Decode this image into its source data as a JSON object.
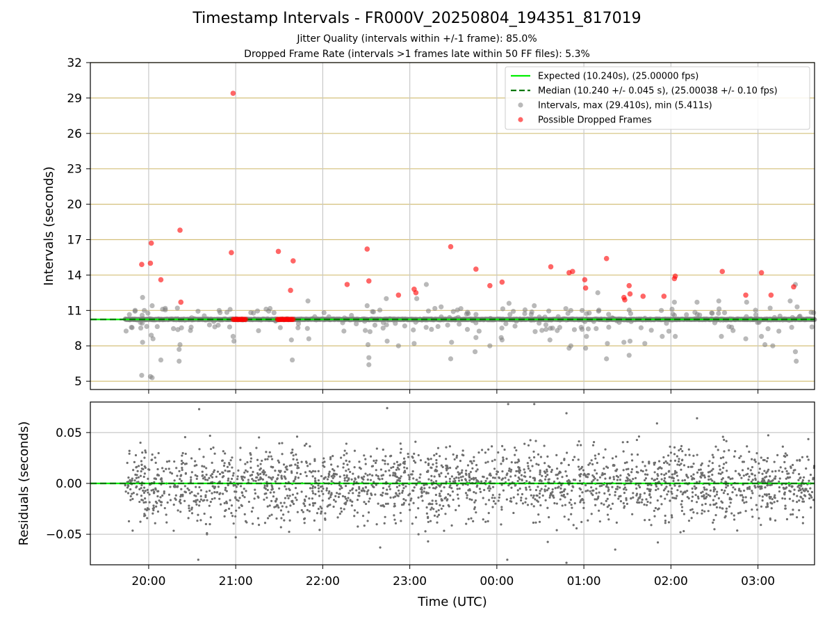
{
  "figure": {
    "title": "Timestamp Intervals - FR000V_20250804_194351_817019",
    "subtitle1": "Jitter Quality (intervals within +/-1 frame): 85.0%",
    "subtitle2": "Dropped Frame Rate (intervals >1 frames late within 50 FF files): 5.3%",
    "xlabel": "Time (UTC)"
  },
  "colors": {
    "expected": "#00ee00",
    "median": "#007700",
    "intervals": "#808080",
    "dropped": "#ff0000",
    "hgrid_top": "#d4c07a",
    "grid": "#c8c8c8"
  },
  "chart_data": [
    {
      "type": "scatter",
      "ylabel": "Intervals (seconds)",
      "yticks": [
        5,
        8,
        11,
        14,
        17,
        20,
        23,
        26,
        29,
        32
      ],
      "ylim": [
        4.3,
        32
      ],
      "xlim_hours": [
        19.33,
        27.65
      ],
      "legend_position": "top-right",
      "legend": [
        {
          "kind": "line",
          "label": "Expected (10.240s), (25.00000 fps)"
        },
        {
          "kind": "dashed",
          "label": "Median (10.240 +/- 0.045 s), (25.00038 +/- 0.10 fps)"
        },
        {
          "kind": "gray-dot",
          "label": "Intervals, max (29.410s), min (5.411s)"
        },
        {
          "kind": "red-dot",
          "label": "Possible Dropped Frames"
        }
      ],
      "expected_interval": 10.24,
      "median_interval": 10.24,
      "series_extent_hours": [
        19.73,
        27.65
      ],
      "dropped_frames": [
        [
          19.92,
          14.9
        ],
        [
          20.02,
          15.0
        ],
        [
          20.03,
          16.7
        ],
        [
          20.14,
          13.6
        ],
        [
          20.36,
          17.8
        ],
        [
          20.37,
          11.7
        ],
        [
          20.95,
          15.9
        ],
        [
          20.97,
          29.4
        ],
        [
          21.49,
          16.0
        ],
        [
          21.63,
          12.7
        ],
        [
          21.66,
          15.2
        ],
        [
          22.28,
          13.2
        ],
        [
          22.51,
          16.2
        ],
        [
          22.53,
          13.5
        ],
        [
          22.87,
          12.3
        ],
        [
          23.05,
          12.8
        ],
        [
          23.07,
          12.5
        ],
        [
          23.47,
          16.4
        ],
        [
          23.76,
          14.5
        ],
        [
          23.92,
          13.1
        ],
        [
          24.06,
          13.4
        ],
        [
          24.62,
          14.7
        ],
        [
          24.83,
          14.2
        ],
        [
          24.87,
          14.3
        ],
        [
          25.01,
          13.6
        ],
        [
          25.02,
          12.9
        ],
        [
          25.26,
          15.4
        ],
        [
          25.46,
          12.1
        ],
        [
          25.47,
          11.9
        ],
        [
          25.52,
          13.1
        ],
        [
          25.53,
          12.4
        ],
        [
          25.68,
          12.2
        ],
        [
          25.92,
          12.2
        ],
        [
          26.04,
          13.7
        ],
        [
          26.05,
          13.9
        ],
        [
          26.59,
          14.3
        ],
        [
          26.86,
          12.3
        ],
        [
          27.04,
          14.2
        ],
        [
          27.15,
          12.3
        ],
        [
          27.41,
          13.0
        ]
      ],
      "dropped_cluster_hours": [
        [
          20.97,
          21.12
        ],
        [
          21.48,
          21.67
        ]
      ],
      "interval_outliers": [
        [
          19.92,
          5.5
        ],
        [
          19.93,
          8.3
        ],
        [
          19.93,
          12.1
        ],
        [
          19.95,
          11.0
        ],
        [
          20.02,
          5.4
        ],
        [
          20.04,
          5.3
        ],
        [
          20.03,
          8.9
        ],
        [
          20.05,
          8.6
        ],
        [
          20.04,
          11.4
        ],
        [
          20.14,
          6.8
        ],
        [
          20.16,
          11.1
        ],
        [
          20.35,
          6.7
        ],
        [
          20.36,
          8.1
        ],
        [
          20.35,
          7.7
        ],
        [
          20.33,
          11.2
        ],
        [
          20.48,
          9.3
        ],
        [
          20.81,
          11.0
        ],
        [
          20.93,
          9.6
        ],
        [
          20.97,
          8.8
        ],
        [
          20.98,
          8.4
        ],
        [
          21.44,
          10.8
        ],
        [
          21.64,
          8.5
        ],
        [
          21.65,
          6.8
        ],
        [
          21.83,
          11.8
        ],
        [
          21.84,
          8.6
        ],
        [
          22.51,
          11.4
        ],
        [
          22.52,
          8.1
        ],
        [
          22.53,
          6.4
        ],
        [
          22.53,
          7.0
        ],
        [
          22.73,
          12.0
        ],
        [
          22.74,
          8.4
        ],
        [
          22.87,
          8.0
        ],
        [
          23.05,
          8.2
        ],
        [
          23.08,
          12.0
        ],
        [
          23.19,
          13.2
        ],
        [
          23.36,
          11.3
        ],
        [
          23.47,
          6.9
        ],
        [
          23.48,
          8.3
        ],
        [
          23.75,
          7.5
        ],
        [
          23.76,
          8.7
        ],
        [
          23.92,
          8.0
        ],
        [
          24.05,
          8.7
        ],
        [
          24.06,
          8.5
        ],
        [
          24.14,
          11.6
        ],
        [
          24.43,
          11.4
        ],
        [
          24.61,
          8.5
        ],
        [
          24.64,
          9.5
        ],
        [
          24.83,
          7.8
        ],
        [
          24.85,
          8.0
        ],
        [
          24.85,
          11.0
        ],
        [
          24.98,
          11.0
        ],
        [
          25.02,
          7.8
        ],
        [
          25.03,
          8.8
        ],
        [
          25.16,
          12.5
        ],
        [
          25.26,
          6.9
        ],
        [
          25.27,
          8.2
        ],
        [
          25.46,
          8.3
        ],
        [
          25.52,
          7.2
        ],
        [
          25.53,
          8.4
        ],
        [
          25.7,
          8.2
        ],
        [
          25.89,
          11.0
        ],
        [
          25.9,
          8.8
        ],
        [
          26.04,
          11.7
        ],
        [
          26.05,
          8.8
        ],
        [
          26.3,
          11.7
        ],
        [
          26.55,
          11.8
        ],
        [
          26.58,
          8.8
        ],
        [
          26.86,
          8.6
        ],
        [
          26.87,
          11.7
        ],
        [
          27.04,
          8.8
        ],
        [
          27.08,
          8.1
        ],
        [
          27.14,
          11.2
        ],
        [
          27.17,
          8.0
        ],
        [
          27.37,
          11.8
        ],
        [
          27.43,
          7.5
        ],
        [
          27.44,
          6.7
        ],
        [
          27.43,
          13.2
        ],
        [
          27.45,
          11.3
        ],
        [
          27.62,
          9.6
        ],
        [
          27.64,
          10.8
        ]
      ]
    },
    {
      "type": "scatter",
      "ylabel": "Residuals (seconds)",
      "yticks": [
        -0.05,
        0.0,
        0.05
      ],
      "ytick_labels": [
        "−0.05",
        "0.00",
        "0.05"
      ],
      "ylim": [
        -0.08,
        0.08
      ],
      "zero_line": 0.0,
      "residual_std": 0.02,
      "outliers": [
        [
          20.58,
          0.073
        ],
        [
          20.57,
          -0.075
        ],
        [
          20.67,
          -0.05
        ],
        [
          21.0,
          -0.053
        ],
        [
          22.74,
          0.074
        ],
        [
          22.66,
          -0.063
        ],
        [
          23.1,
          -0.05
        ],
        [
          23.21,
          -0.057
        ],
        [
          24.13,
          0.078
        ],
        [
          24.12,
          -0.075
        ],
        [
          24.43,
          0.078
        ],
        [
          24.8,
          0.069
        ],
        [
          24.8,
          -0.078
        ],
        [
          25.36,
          -0.065
        ],
        [
          25.84,
          0.059
        ],
        [
          25.85,
          -0.058
        ],
        [
          26.11,
          -0.048
        ],
        [
          26.3,
          0.064
        ],
        [
          26.5,
          -0.045
        ]
      ]
    }
  ],
  "xticks": [
    {
      "hour": 20,
      "label": "20:00"
    },
    {
      "hour": 21,
      "label": "21:00"
    },
    {
      "hour": 22,
      "label": "22:00"
    },
    {
      "hour": 23,
      "label": "23:00"
    },
    {
      "hour": 24,
      "label": "00:00"
    },
    {
      "hour": 25,
      "label": "01:00"
    },
    {
      "hour": 26,
      "label": "02:00"
    },
    {
      "hour": 27,
      "label": "03:00"
    }
  ]
}
